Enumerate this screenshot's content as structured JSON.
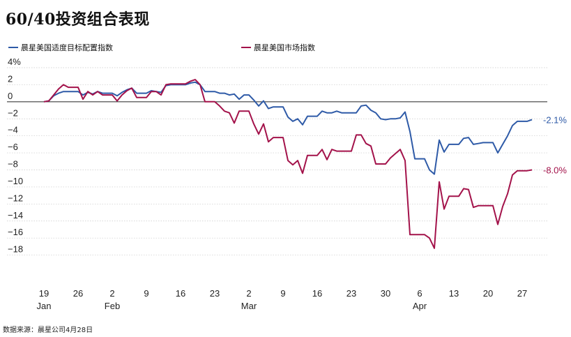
{
  "title": "60/40投资组合表现",
  "source": "数据来源：晨星公司4月28日",
  "colors": {
    "blue": "#2e5aa7",
    "red": "#a3124a",
    "grid": "#c8c8c8"
  },
  "chart_data": {
    "type": "line",
    "title": "60/40投资组合表现",
    "ylim": [
      -20,
      4
    ],
    "yticks": [
      4,
      2,
      0,
      -2,
      -4,
      -6,
      -8,
      -10,
      -12,
      -14,
      -16,
      -18
    ],
    "ytick_labels": [
      "4%",
      "2",
      "0",
      "−2",
      "−4",
      "−6",
      "−8",
      "−10",
      "−12",
      "−14",
      "−16",
      "−18"
    ],
    "xlim": [
      0,
      101
    ],
    "xticks": [
      {
        "pos": 0,
        "label": "19",
        "month": "Jan"
      },
      {
        "pos": 7,
        "label": "26",
        "month": ""
      },
      {
        "pos": 14,
        "label": "2",
        "month": "Feb"
      },
      {
        "pos": 21,
        "label": "9",
        "month": ""
      },
      {
        "pos": 28,
        "label": "16",
        "month": ""
      },
      {
        "pos": 35,
        "label": "23",
        "month": ""
      },
      {
        "pos": 42,
        "label": "2",
        "month": "Mar"
      },
      {
        "pos": 49,
        "label": "9",
        "month": ""
      },
      {
        "pos": 56,
        "label": "16",
        "month": ""
      },
      {
        "pos": 63,
        "label": "23",
        "month": ""
      },
      {
        "pos": 70,
        "label": "30",
        "month": ""
      },
      {
        "pos": 77,
        "label": "6",
        "month": "Apr"
      },
      {
        "pos": 84,
        "label": "13",
        "month": ""
      },
      {
        "pos": 91,
        "label": "20",
        "month": ""
      },
      {
        "pos": 98,
        "label": "27",
        "month": ""
      }
    ],
    "series": [
      {
        "name": "晨星美国适度目标配置指数",
        "end_label": "-2.1%",
        "x": [
          0,
          1,
          2,
          3,
          4,
          5,
          6,
          7,
          8,
          9,
          10,
          11,
          12,
          13,
          14,
          15,
          16,
          17,
          18,
          19,
          20,
          21,
          22,
          23,
          24,
          25,
          26,
          27,
          28,
          29,
          30,
          31,
          32,
          33,
          34,
          35,
          36,
          37,
          38,
          39,
          40,
          41,
          42,
          43,
          44,
          45,
          46,
          47,
          48,
          49,
          50,
          51,
          52,
          53,
          54,
          55,
          56,
          57,
          58,
          59,
          60,
          61,
          62,
          63,
          64,
          65,
          66,
          67,
          68,
          69,
          70,
          71,
          72,
          73,
          74,
          75,
          76,
          77,
          78,
          79,
          80,
          81,
          82,
          83,
          84,
          85,
          86,
          87,
          88,
          89,
          90,
          91,
          92,
          93,
          94,
          95,
          96,
          97,
          98,
          99,
          100
        ],
        "values": [
          0,
          0.1,
          0.7,
          1.0,
          1.2,
          1.2,
          1.2,
          1.2,
          0.8,
          1.1,
          0.9,
          1.2,
          1.0,
          1.0,
          1.0,
          0.7,
          1.1,
          1.4,
          1.6,
          1.0,
          1.0,
          1.0,
          1.3,
          1.2,
          1.1,
          1.9,
          2.0,
          2.0,
          2.0,
          2.0,
          2.2,
          2.3,
          2.0,
          1.2,
          1.2,
          1.2,
          1.0,
          1.0,
          0.8,
          0.9,
          0.3,
          0.8,
          0.8,
          0.2,
          -0.5,
          0.1,
          -0.8,
          -0.6,
          -0.6,
          -0.6,
          -1.8,
          -2.3,
          -2.0,
          -2.7,
          -1.7,
          -1.7,
          -1.7,
          -1.1,
          -1.3,
          -1.3,
          -1.1,
          -1.3,
          -1.3,
          -1.3,
          -1.3,
          -0.5,
          -0.4,
          -1.0,
          -1.3,
          -2.0,
          -2.1,
          -2.0,
          -2.0,
          -1.9,
          -1.2,
          -3.5,
          -6.7,
          -6.7,
          -6.7,
          -8.0,
          -8.5,
          -4.5,
          -5.9,
          -5.0,
          -5.0,
          -5.0,
          -4.3,
          -4.2,
          -5.0,
          -4.9,
          -4.8,
          -4.8,
          -4.8,
          -6.0,
          -5.0,
          -4.0,
          -2.8,
          -2.3,
          -2.3,
          -2.3,
          -2.1
        ]
      },
      {
        "name": "晨星美国市场指数",
        "end_label": "-8.0%",
        "x": [
          0,
          1,
          2,
          3,
          4,
          5,
          6,
          7,
          8,
          9,
          10,
          11,
          12,
          13,
          14,
          15,
          16,
          17,
          18,
          19,
          20,
          21,
          22,
          23,
          24,
          25,
          26,
          27,
          28,
          29,
          30,
          31,
          32,
          33,
          34,
          35,
          36,
          37,
          38,
          39,
          40,
          41,
          42,
          43,
          44,
          45,
          46,
          47,
          48,
          49,
          50,
          51,
          52,
          53,
          54,
          55,
          56,
          57,
          58,
          59,
          60,
          61,
          62,
          63,
          64,
          65,
          66,
          67,
          68,
          69,
          70,
          71,
          72,
          73,
          74,
          75,
          76,
          77,
          78,
          79,
          80,
          81,
          82,
          83,
          84,
          85,
          86,
          87,
          88,
          89,
          90,
          91,
          92,
          93,
          94,
          95,
          96,
          97,
          98,
          99,
          100
        ],
        "values": [
          0,
          0.1,
          0.8,
          1.5,
          2.0,
          1.7,
          1.7,
          1.7,
          0.3,
          1.2,
          0.8,
          1.2,
          0.8,
          0.8,
          0.8,
          0.1,
          0.8,
          1.3,
          1.6,
          0.5,
          0.5,
          0.5,
          1.2,
          1.2,
          0.8,
          2.0,
          2.1,
          2.1,
          2.1,
          2.1,
          2.4,
          2.6,
          2.0,
          0,
          0,
          0,
          -0.5,
          -1.1,
          -1.3,
          -2.5,
          -1.1,
          -1.1,
          -1.1,
          -2.6,
          -3.8,
          -2.6,
          -4.7,
          -4.2,
          -4.2,
          -4.2,
          -6.9,
          -7.4,
          -6.9,
          -8.4,
          -6.3,
          -6.3,
          -6.3,
          -5.6,
          -6.8,
          -5.6,
          -5.8,
          -5.8,
          -5.8,
          -5.8,
          -3.9,
          -3.9,
          -4.9,
          -5.2,
          -7.3,
          -7.3,
          -7.3,
          -6.6,
          -6.1,
          -5.6,
          -6.9,
          -15.6,
          -15.6,
          -15.6,
          -15.6,
          -16.0,
          -17.2,
          -9.4,
          -12.6,
          -11.1,
          -11.1,
          -11.1,
          -10.2,
          -10.3,
          -12.4,
          -12.2,
          -12.2,
          -12.2,
          -12.2,
          -14.4,
          -12.3,
          -10.8,
          -8.6,
          -8.1,
          -8.1,
          -8.1,
          -8.0
        ]
      }
    ]
  }
}
